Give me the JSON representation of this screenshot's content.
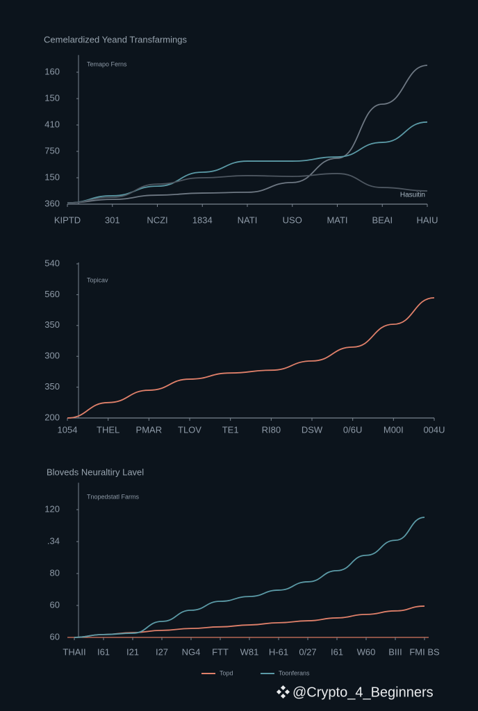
{
  "chart_data": [
    {
      "type": "line",
      "title": "Cemelardized Yeand Transfarmings",
      "note": "Temapo Ferns",
      "annotation": "Hasuitin",
      "categories": [
        "KIPTD",
        "301",
        "NCZI",
        "1834",
        "NATI",
        "USO",
        "MATI",
        "BEAI",
        "HAIU"
      ],
      "series": [
        {
          "color": "#6e7883",
          "values": [
            0.05,
            0.18,
            0.34,
            0.42,
            0.45,
            0.82,
            1.74,
            3.79,
            5.26
          ]
        },
        {
          "color": "#5b9aa6",
          "values": [
            0.05,
            0.32,
            0.68,
            1.21,
            1.63,
            1.63,
            1.79,
            2.34,
            3.11
          ]
        },
        {
          "color": "#4e5761",
          "values": [
            0.05,
            0.26,
            0.76,
            1.0,
            1.08,
            1.05,
            1.16,
            0.63,
            0.5
          ]
        }
      ],
      "ylim": [
        0,
        5.6
      ],
      "yticks": [
        {
          "value": 0,
          "label": "360"
        },
        {
          "value": 1,
          "label": "150"
        },
        {
          "value": 2,
          "label": "750"
        },
        {
          "value": 3,
          "label": "410"
        },
        {
          "value": 4,
          "label": "150"
        },
        {
          "value": 5,
          "label": "160"
        }
      ],
      "grid": false
    },
    {
      "type": "line",
      "note": "Topicav",
      "categories": [
        "1054",
        "THEL",
        "PMAR",
        "TLOV",
        "TE1",
        "RI80",
        "DSW",
        "0/6U",
        "M00I",
        "004U"
      ],
      "series": [
        {
          "color": "#e0806a",
          "values": [
            0,
            0.5,
            0.9,
            1.26,
            1.46,
            1.55,
            1.85,
            2.3,
            3.04,
            3.9
          ]
        }
      ],
      "ylim": [
        0,
        5
      ],
      "yticks": [
        {
          "value": 0,
          "label": "200"
        },
        {
          "value": 1,
          "label": "350"
        },
        {
          "value": 2,
          "label": "300"
        },
        {
          "value": 3,
          "label": "350"
        },
        {
          "value": 4,
          "label": "560"
        },
        {
          "value": 5,
          "label": "540"
        }
      ],
      "grid": false
    },
    {
      "type": "line",
      "title": "Bloveds Neuraltiry Lavel",
      "note": "Tnopedstatl Farms",
      "categories": [
        "THAII",
        "I61",
        "I21",
        "I27",
        "NG4",
        "FTT",
        "W81",
        "H-61",
        "0/27",
        "I61",
        "W60",
        "BIII",
        "FMI BS"
      ],
      "series": [
        {
          "name": "Topd",
          "color": "#e0806a",
          "values": [
            0,
            0.09,
            0.15,
            0.22,
            0.28,
            0.33,
            0.39,
            0.46,
            0.52,
            0.61,
            0.72,
            0.83,
            0.98
          ]
        },
        {
          "name": "Toonferans",
          "color": "#5b9aa6",
          "values": [
            0,
            0.09,
            0.13,
            0.5,
            0.85,
            1.13,
            1.28,
            1.48,
            1.74,
            2.09,
            2.57,
            3.04,
            3.76
          ]
        }
      ],
      "ylim": [
        0,
        4.8
      ],
      "yticks": [
        {
          "value": 0,
          "label": "60"
        },
        {
          "value": 1,
          "label": "60"
        },
        {
          "value": 2,
          "label": "80"
        },
        {
          "value": 3,
          "label": ".34"
        },
        {
          "value": 4,
          "label": "120"
        }
      ],
      "grid": false
    }
  ],
  "watermark": "@Crypto_4_Beginners"
}
